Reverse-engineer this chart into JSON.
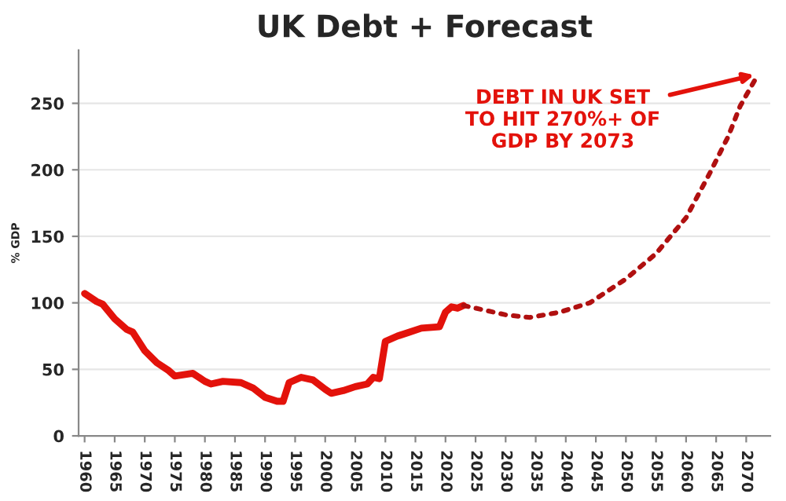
{
  "chart_data": {
    "type": "line",
    "title": "UK Debt + Forecast",
    "ylabel": "% GDP",
    "series": [
      {
        "color": "#e3120b",
        "line_style": "solid",
        "x": [
          1960,
          1962,
          1963,
          1965,
          1967,
          1968,
          1970,
          1972,
          1974,
          1975,
          1978,
          1980,
          1981,
          1983,
          1986,
          1988,
          1990,
          1992,
          1993,
          1994,
          1996,
          1998,
          2000,
          2001,
          2003,
          2005,
          2007,
          2008,
          2009,
          2010,
          2012,
          2014,
          2016,
          2019,
          2020,
          2021,
          2022,
          2023
        ],
        "values": [
          107,
          101,
          99,
          88,
          80,
          78,
          64,
          55,
          49,
          45,
          47,
          41,
          39,
          41,
          40,
          36,
          29,
          26,
          26,
          40,
          44,
          42,
          35,
          32,
          34,
          37,
          39,
          44,
          43,
          71,
          75,
          78,
          81,
          82,
          93,
          97,
          96,
          98
        ]
      },
      {
        "color": "#b01010",
        "line_style": "dotted",
        "x": [
          2023,
          2030,
          2034,
          2039,
          2044,
          2050,
          2055,
          2060,
          2064,
          2067,
          2069,
          2072
        ],
        "values": [
          98,
          91,
          89,
          93,
          100,
          118,
          137,
          164,
          198,
          225,
          248,
          272
        ]
      }
    ],
    "annotations": [
      {
        "text": "DEBT IN UK SET\nTO HIT 270%+ OF\nGDP BY 2073",
        "x": 2072,
        "y": 272
      }
    ],
    "xlim": [
      1959,
      2074
    ],
    "ylim": [
      0,
      290
    ],
    "xticks": [
      1960,
      1965,
      1970,
      1975,
      1980,
      1985,
      1990,
      1995,
      2000,
      2005,
      2010,
      2015,
      2020,
      2025,
      2030,
      2035,
      2040,
      2045,
      2050,
      2055,
      2060,
      2065,
      2070
    ],
    "yticks": [
      0,
      50,
      100,
      150,
      200,
      250
    ],
    "grid": "y",
    "legend": false,
    "marker": "none"
  }
}
